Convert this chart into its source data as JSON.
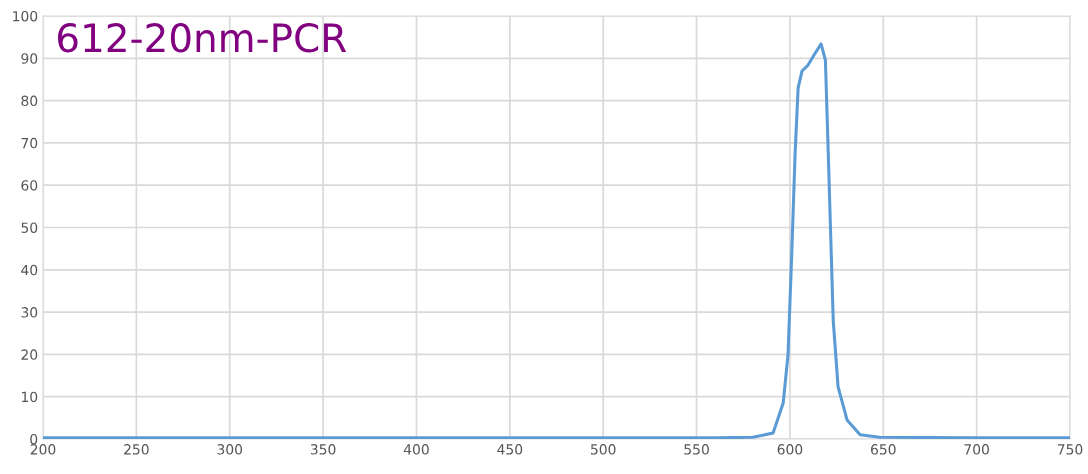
{
  "chart_data": {
    "type": "line",
    "title": "612-20nm-PCR",
    "x": [
      200,
      300,
      400,
      500,
      560,
      580,
      591,
      596.4,
      599,
      601,
      602.8,
      604.4,
      606.5,
      609.7,
      613.5,
      616.7,
      619,
      620,
      621.6,
      623.2,
      625.8,
      630.6,
      637.6,
      648,
      700,
      750
    ],
    "series": [
      {
        "color": "#5b9bd5",
        "values": [
          0.3,
          0.3,
          0.3,
          0.3,
          0.3,
          0.4,
          1.4,
          8.5,
          20,
          44,
          67.6,
          83,
          87,
          88.4,
          91.2,
          93.4,
          89.6,
          75.4,
          51.8,
          28,
          12.3,
          4.5,
          1,
          0.4,
          0.3,
          0.3
        ]
      }
    ],
    "xlim": [
      200,
      750
    ],
    "xticks": [
      200,
      250,
      300,
      350,
      400,
      450,
      500,
      550,
      600,
      650,
      700,
      750
    ],
    "ylim": [
      0,
      100
    ],
    "yticks": [
      0,
      10,
      20,
      30,
      40,
      50,
      60,
      70,
      80,
      90,
      100
    ],
    "grid": true,
    "marker": "none",
    "line_style": "solid"
  }
}
